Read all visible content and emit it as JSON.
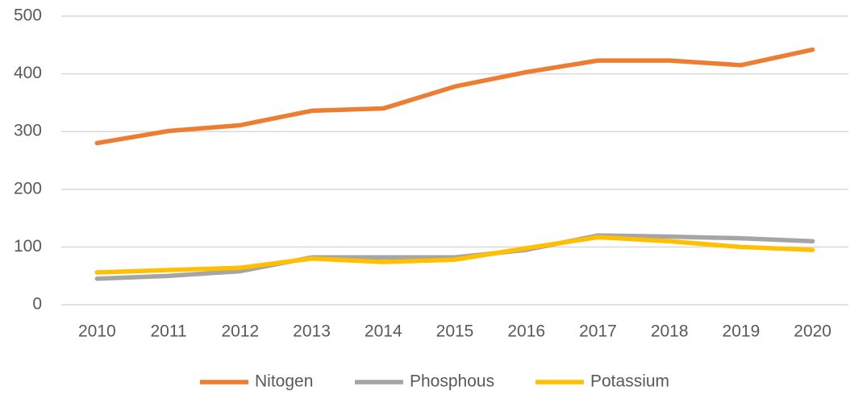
{
  "chart_data": {
    "type": "line",
    "categories": [
      "2010",
      "2011",
      "2012",
      "2013",
      "2014",
      "2015",
      "2016",
      "2017",
      "2018",
      "2019",
      "2020"
    ],
    "series": [
      {
        "name": "Nitogen",
        "color": "#ed7d31",
        "values": [
          280,
          301,
          311,
          336,
          340,
          378,
          403,
          423,
          423,
          415,
          442
        ]
      },
      {
        "name": "Phosphous",
        "color": "#a5a5a5",
        "values": [
          45,
          50,
          58,
          82,
          82,
          82,
          95,
          120,
          118,
          115,
          110
        ]
      },
      {
        "name": "Potassium",
        "color": "#ffc000",
        "values": [
          56,
          60,
          64,
          80,
          74,
          78,
          98,
          117,
          110,
          100,
          95
        ]
      }
    ],
    "ylim": [
      0,
      500
    ],
    "yticks": [
      0,
      100,
      200,
      300,
      400,
      500
    ],
    "grid": true,
    "legend": "bottom"
  }
}
